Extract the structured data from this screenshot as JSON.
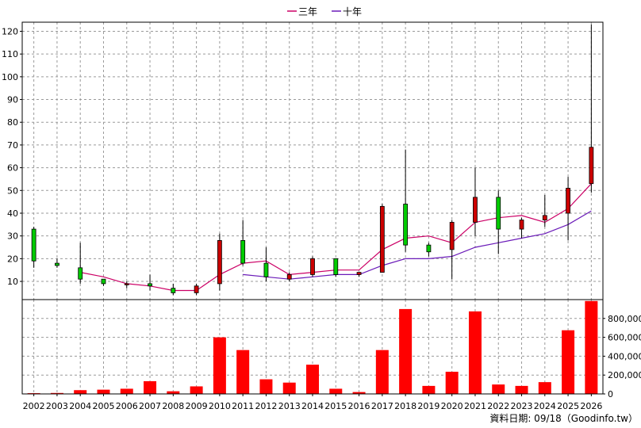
{
  "chart_data": {
    "type": "candlestick_with_volume",
    "legend": [
      {
        "name": "三年",
        "color": "#cc0066"
      },
      {
        "name": "十年",
        "color": "#6a1ab8"
      }
    ],
    "years": [
      "2002",
      "2003",
      "2004",
      "2005",
      "2006",
      "2007",
      "2008",
      "2009",
      "2010",
      "2011",
      "2012",
      "2013",
      "2014",
      "2015",
      "2016",
      "2017",
      "2018",
      "2019",
      "2020",
      "2021",
      "2022",
      "2023",
      "2024",
      "2025",
      "2026"
    ],
    "price_axis": {
      "ylim": [
        2,
        124
      ],
      "ticks": [
        10,
        20,
        30,
        40,
        50,
        60,
        70,
        80,
        90,
        100,
        110,
        120
      ]
    },
    "volume_axis": {
      "ylim": [
        0,
        1000000
      ],
      "ticks": [
        0,
        200000,
        400000,
        600000,
        800000
      ],
      "tick_labels": [
        "0",
        "200,000",
        "400,000",
        "600,000",
        "800,000"
      ]
    },
    "candles": [
      {
        "year": "2002",
        "open": 33,
        "high": 34,
        "low": 16,
        "close": 19
      },
      {
        "year": "2003",
        "open": 18,
        "high": 20,
        "low": 16,
        "close": 17
      },
      {
        "year": "2004",
        "open": 16,
        "high": 27,
        "low": 9,
        "close": 11
      },
      {
        "year": "2005",
        "open": 11,
        "high": 11,
        "low": 8,
        "close": 9
      },
      {
        "year": "2006",
        "open": 9,
        "high": 10,
        "low": 7,
        "close": 9
      },
      {
        "year": "2007",
        "open": 9,
        "high": 13,
        "low": 6,
        "close": 8
      },
      {
        "year": "2008",
        "open": 7,
        "high": 9,
        "low": 4,
        "close": 5
      },
      {
        "year": "2009",
        "open": 5,
        "high": 9,
        "low": 4,
        "close": 8
      },
      {
        "year": "2010",
        "open": 9,
        "high": 31,
        "low": 6,
        "close": 28
      },
      {
        "year": "2011",
        "open": 28,
        "high": 37,
        "low": 17,
        "close": 18
      },
      {
        "year": "2012",
        "open": 18,
        "high": 25,
        "low": 10,
        "close": 12
      },
      {
        "year": "2013",
        "open": 11,
        "high": 14,
        "low": 10,
        "close": 13
      },
      {
        "year": "2014",
        "open": 13,
        "high": 21,
        "low": 12,
        "close": 20
      },
      {
        "year": "2015",
        "open": 20,
        "high": 20,
        "low": 12,
        "close": 13
      },
      {
        "year": "2016",
        "open": 13,
        "high": 14,
        "low": 12,
        "close": 14
      },
      {
        "year": "2017",
        "open": 14,
        "high": 44,
        "low": 14,
        "close": 43
      },
      {
        "year": "2018",
        "open": 44,
        "high": 68,
        "low": 23,
        "close": 26
      },
      {
        "year": "2019",
        "open": 26,
        "high": 27,
        "low": 21,
        "close": 23
      },
      {
        "year": "2020",
        "open": 24,
        "high": 37,
        "low": 11,
        "close": 36
      },
      {
        "year": "2021",
        "open": 36,
        "high": 60,
        "low": 30,
        "close": 47
      },
      {
        "year": "2022",
        "open": 47,
        "high": 50,
        "low": 22,
        "close": 33
      },
      {
        "year": "2023",
        "open": 33,
        "high": 38,
        "low": 29,
        "close": 37
      },
      {
        "year": "2024",
        "open": 37,
        "high": 48,
        "low": 34,
        "close": 39
      },
      {
        "year": "2025",
        "open": 40,
        "high": 56,
        "low": 28,
        "close": 51
      },
      {
        "year": "2026",
        "open": 53,
        "high": 123,
        "low": 49,
        "close": 69
      }
    ],
    "series": [
      {
        "name": "三年",
        "values": [
          null,
          null,
          14,
          12,
          9,
          8,
          6,
          6,
          13,
          18,
          19,
          13,
          14,
          15,
          15,
          24,
          29,
          30,
          27,
          36,
          38,
          39,
          36,
          42,
          53
        ]
      },
      {
        "name": "十年",
        "values": [
          null,
          null,
          null,
          null,
          null,
          null,
          null,
          null,
          null,
          13,
          12,
          11,
          12,
          13,
          13,
          17,
          20,
          20,
          21,
          25,
          27,
          29,
          31,
          35,
          41
        ]
      }
    ],
    "volume": [
      8000,
      10000,
      40000,
      45000,
      55000,
      135000,
      28000,
      80000,
      600000,
      465000,
      155000,
      120000,
      310000,
      55000,
      20000,
      465000,
      900000,
      85000,
      235000,
      875000,
      100000,
      85000,
      125000,
      675000,
      985000
    ],
    "colors": {
      "up": "#cc0000",
      "down": "#00cc00",
      "volume": "#ff0000"
    }
  },
  "footer": "資料日期: 09/18（Goodinfo.tw）"
}
